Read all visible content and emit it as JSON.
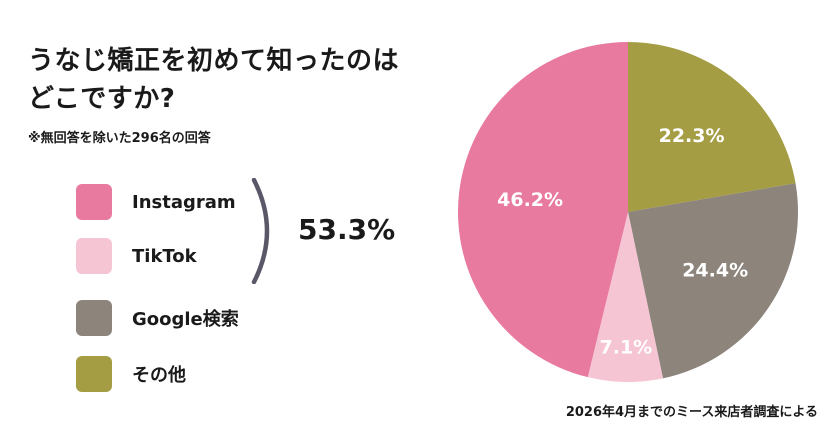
{
  "title_lines": [
    "うなじ矯正を初めて知ったのは",
    "どこですか?"
  ],
  "note": "※無回答を除いた296名の回答",
  "combined_label": "53.3%",
  "source": "2026年4月までのミース来店者調査による",
  "colors": {
    "instagram": "#e87a9f",
    "tiktok": "#f6c5d4",
    "google": "#8d857c",
    "other": "#a59d44"
  },
  "chart_data": {
    "type": "pie",
    "title": "うなじ矯正を初めて知ったのはどこですか?",
    "slices": [
      {
        "label": "Instagram",
        "value": 46.2,
        "display": "46.2%",
        "color": "#e87a9f"
      },
      {
        "label": "TikTok",
        "value": 7.1,
        "display": "7.1%",
        "color": "#f6c5d4"
      },
      {
        "label": "Google検索",
        "value": 24.4,
        "display": "24.4%",
        "color": "#8d857c"
      },
      {
        "label": "その他",
        "value": 22.3,
        "display": "22.3%",
        "color": "#a59d44"
      }
    ],
    "legend_position": "left",
    "start": "top",
    "direction": "clockwise",
    "slice_order_clockwise": [
      "その他",
      "Google検索",
      "TikTok",
      "Instagram"
    ]
  }
}
